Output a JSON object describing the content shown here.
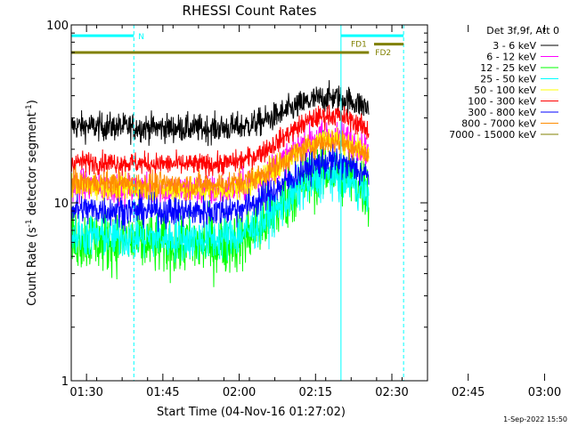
{
  "chart_data": {
    "type": "line",
    "title": "RHESSI Count Rates",
    "xlabel": "Start Time (04-Nov-16 01:27:02)",
    "ylabel_parts": [
      "Count Rate (s",
      "-1",
      " detector segment",
      "-1",
      ")"
    ],
    "yscale": "log",
    "ylim": [
      1,
      100
    ],
    "xlim_minutes_after_0127": [
      0,
      70
    ],
    "x_ticks": [
      "01:30",
      "01:45",
      "02:00",
      "02:15",
      "02:30",
      "02:45",
      "03:00"
    ],
    "y_ticks": [
      "1",
      "10",
      "100"
    ],
    "legend_title": "Det 3f,9f, Att 0",
    "legend_position": "top-right, outside plot",
    "series": [
      {
        "name": "3 - 6 keV",
        "color": "#000000",
        "base": 27,
        "peak": 39,
        "end": 25,
        "noise": 0.09
      },
      {
        "name": "6 - 12 keV",
        "color": "#ff00ff",
        "base": 12.5,
        "peak": 24,
        "end": 10.5,
        "noise": 0.1
      },
      {
        "name": "12 - 25 keV",
        "color": "#00ff00",
        "base": 6.3,
        "peak": 15,
        "end": 5,
        "noise": 0.2
      },
      {
        "name": "25 - 50 keV",
        "color": "#00ffff",
        "base": 6.6,
        "peak": 14,
        "end": 5.7,
        "noise": 0.14
      },
      {
        "name": "50 - 100 keV",
        "color": "#ffff00",
        "base": 12.5,
        "peak": 23,
        "end": 10.5,
        "noise": 0.08
      },
      {
        "name": "100 - 300 keV",
        "color": "#ff0000",
        "base": 17,
        "peak": 31,
        "end": 15.5,
        "noise": 0.07
      },
      {
        "name": "300 - 800 keV",
        "color": "#0000ff",
        "base": 9.2,
        "peak": 17,
        "end": 8.5,
        "noise": 0.1
      },
      {
        "name": "800 - 7000 keV",
        "color": "#ff8c00",
        "base": 13,
        "peak": 22,
        "end": 12,
        "noise": 0.08
      },
      {
        "name": "7000 - 15000 keV",
        "color": "#808000",
        "base": null,
        "peak": null,
        "end": null,
        "noise": 0
      }
    ],
    "peak_time_minutes": 51,
    "data_end_minutes": 58.5,
    "vlines": [
      {
        "t": 0,
        "color": "#00ffff",
        "style": "solid"
      },
      {
        "t": 12.3,
        "color": "#00ffff",
        "style": "dashed"
      },
      {
        "t": 53,
        "color": "#00ffff",
        "style": "solid"
      },
      {
        "t": 65.3,
        "color": "#00ffff",
        "style": "dashed"
      }
    ],
    "bars": [
      {
        "label": "N",
        "t0": 0,
        "t1": 12.3,
        "level": 87,
        "color": "#00ffff"
      },
      {
        "label": "",
        "t0": 53,
        "t1": 65.3,
        "level": 87,
        "color": "#00ffff"
      },
      {
        "label": "FD1",
        "t0": 59.5,
        "t1": 65.3,
        "level": 78,
        "color": "#808000"
      },
      {
        "label": "FD2",
        "t0": 0,
        "t1": 58.5,
        "level": 70,
        "color": "#808000"
      }
    ]
  },
  "footer": {
    "timestamp": "1-Sep-2022 15:50"
  }
}
